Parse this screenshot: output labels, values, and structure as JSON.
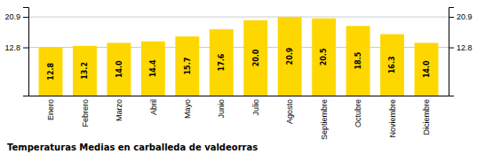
{
  "chart_data": {
    "type": "bar",
    "title": "Temperaturas Medias en carballeda de valdeorras",
    "categories": [
      "Enero",
      "Febrero",
      "Marzo",
      "Abril",
      "Mayo",
      "Junio",
      "Julio",
      "Agosto",
      "Septiembre",
      "Octubre",
      "Noviembre",
      "Diciembre"
    ],
    "values": [
      12.8,
      13.2,
      14.0,
      14.4,
      15.7,
      17.6,
      20.0,
      20.9,
      20.5,
      18.5,
      16.3,
      14.0
    ],
    "value_labels": [
      "12.8",
      "13.2",
      "14.0",
      "14.4",
      "15.7",
      "17.6",
      "20.0",
      "20.9",
      "20.5",
      "18.5",
      "16.3",
      "14.0"
    ],
    "data_labels": true,
    "color": "#FFD700",
    "ylim": [
      0,
      23.5
    ],
    "yticks": [
      12.8,
      20.9
    ],
    "grid": true
  }
}
